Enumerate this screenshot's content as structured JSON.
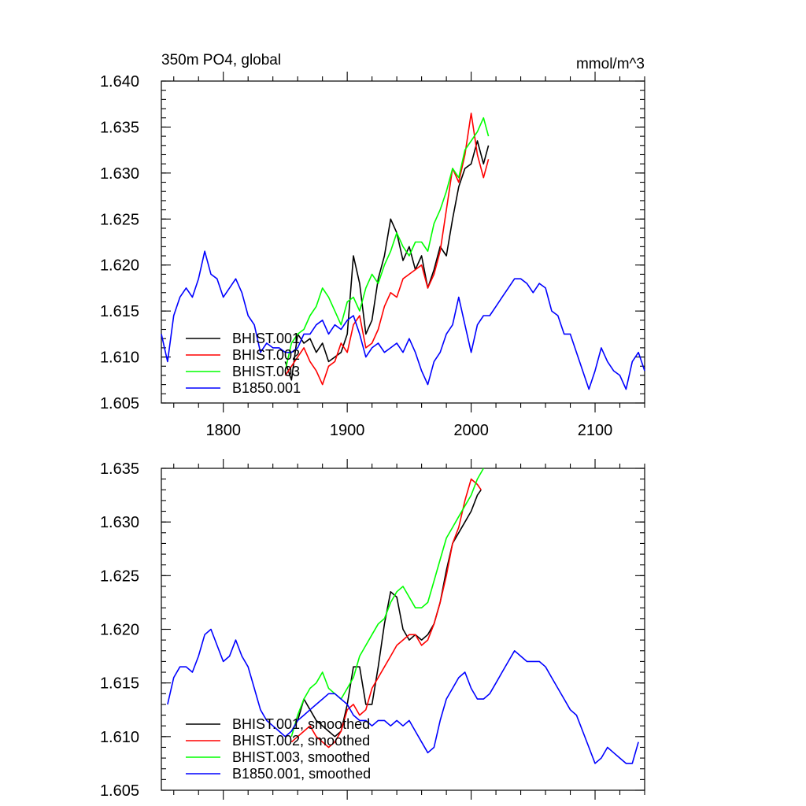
{
  "chart_data": [
    {
      "type": "line",
      "title": "350m PO4, global",
      "units": "mmol/m^3",
      "xlabel": "",
      "ylabel": "",
      "xlim": [
        1750,
        2140
      ],
      "ylim": [
        1.605,
        1.64
      ],
      "x_ticks": [
        1800,
        1900,
        2000,
        2100
      ],
      "x_tick_labels": [
        "1800",
        "1900",
        "2000",
        "2100"
      ],
      "y_ticks": [
        1.605,
        1.61,
        1.615,
        1.62,
        1.625,
        1.63,
        1.635,
        1.64
      ],
      "y_tick_labels": [
        "1.605",
        "1.610",
        "1.615",
        "1.620",
        "1.625",
        "1.630",
        "1.635",
        "1.640"
      ],
      "grid": false,
      "legend_position": "bottom-left",
      "series": [
        {
          "name": "BHIST.001",
          "color": "#000000",
          "x": [
            1850,
            1855,
            1860,
            1865,
            1870,
            1875,
            1880,
            1885,
            1890,
            1895,
            1900,
            1905,
            1910,
            1915,
            1920,
            1925,
            1930,
            1935,
            1940,
            1945,
            1950,
            1955,
            1960,
            1965,
            1970,
            1975,
            1980,
            1985,
            1990,
            1995,
            2000,
            2005,
            2010,
            2014
          ],
          "y": [
            1.6095,
            1.6075,
            1.6125,
            1.6115,
            1.612,
            1.6105,
            1.6115,
            1.6095,
            1.61,
            1.6105,
            1.6125,
            1.621,
            1.618,
            1.6125,
            1.614,
            1.6185,
            1.621,
            1.625,
            1.6235,
            1.6205,
            1.622,
            1.6195,
            1.621,
            1.6175,
            1.6195,
            1.622,
            1.621,
            1.625,
            1.6285,
            1.6305,
            1.631,
            1.6335,
            1.631,
            1.633
          ]
        },
        {
          "name": "BHIST.002",
          "color": "#ff0000",
          "x": [
            1850,
            1855,
            1860,
            1865,
            1870,
            1875,
            1880,
            1885,
            1890,
            1895,
            1900,
            1905,
            1910,
            1915,
            1920,
            1925,
            1930,
            1935,
            1940,
            1945,
            1950,
            1955,
            1960,
            1965,
            1970,
            1975,
            1980,
            1985,
            1990,
            1995,
            2000,
            2005,
            2010,
            2014
          ],
          "y": [
            1.608,
            1.609,
            1.61,
            1.611,
            1.6095,
            1.6085,
            1.607,
            1.609,
            1.6095,
            1.6115,
            1.6105,
            1.6135,
            1.6145,
            1.611,
            1.6115,
            1.613,
            1.6155,
            1.617,
            1.6165,
            1.6185,
            1.619,
            1.6195,
            1.62,
            1.6175,
            1.619,
            1.6215,
            1.626,
            1.6305,
            1.629,
            1.632,
            1.6365,
            1.632,
            1.6295,
            1.6315
          ]
        },
        {
          "name": "BHIST.003",
          "color": "#00ff00",
          "x": [
            1850,
            1855,
            1860,
            1865,
            1870,
            1875,
            1880,
            1885,
            1890,
            1895,
            1900,
            1905,
            1910,
            1915,
            1920,
            1925,
            1930,
            1935,
            1940,
            1945,
            1950,
            1955,
            1960,
            1965,
            1970,
            1975,
            1980,
            1985,
            1990,
            1995,
            2000,
            2005,
            2010,
            2014
          ],
          "y": [
            1.6085,
            1.6115,
            1.6125,
            1.613,
            1.6145,
            1.6155,
            1.6175,
            1.6165,
            1.615,
            1.6135,
            1.616,
            1.6165,
            1.615,
            1.6175,
            1.619,
            1.618,
            1.62,
            1.6215,
            1.6235,
            1.622,
            1.621,
            1.6225,
            1.6225,
            1.6215,
            1.6245,
            1.626,
            1.628,
            1.6305,
            1.6295,
            1.6325,
            1.6335,
            1.6345,
            1.636,
            1.634
          ]
        },
        {
          "name": "B1850.001",
          "color": "#0000ff",
          "x": [
            1750,
            1755,
            1760,
            1765,
            1770,
            1775,
            1780,
            1785,
            1790,
            1795,
            1800,
            1805,
            1810,
            1815,
            1820,
            1825,
            1830,
            1835,
            1840,
            1845,
            1850,
            1855,
            1860,
            1865,
            1870,
            1875,
            1880,
            1885,
            1890,
            1895,
            1900,
            1905,
            1910,
            1915,
            1920,
            1925,
            1930,
            1935,
            1940,
            1945,
            1950,
            1955,
            1960,
            1965,
            1970,
            1975,
            1980,
            1985,
            1990,
            1995,
            2000,
            2005,
            2010,
            2015,
            2020,
            2025,
            2030,
            2035,
            2040,
            2045,
            2050,
            2055,
            2060,
            2065,
            2070,
            2075,
            2080,
            2085,
            2090,
            2095,
            2100,
            2105,
            2110,
            2115,
            2120,
            2125,
            2130,
            2135,
            2140
          ],
          "y": [
            1.6125,
            1.6095,
            1.6145,
            1.6165,
            1.6175,
            1.6165,
            1.6185,
            1.6215,
            1.619,
            1.6185,
            1.6165,
            1.6175,
            1.6185,
            1.617,
            1.6145,
            1.6135,
            1.6105,
            1.6115,
            1.611,
            1.611,
            1.6105,
            1.6105,
            1.611,
            1.6125,
            1.6125,
            1.6135,
            1.614,
            1.6125,
            1.6135,
            1.613,
            1.614,
            1.6145,
            1.6125,
            1.61,
            1.611,
            1.6115,
            1.6105,
            1.611,
            1.6115,
            1.6105,
            1.612,
            1.6105,
            1.6085,
            1.607,
            1.6095,
            1.6105,
            1.6125,
            1.6135,
            1.6165,
            1.6135,
            1.6105,
            1.6135,
            1.6145,
            1.6145,
            1.6155,
            1.6165,
            1.6175,
            1.6185,
            1.6185,
            1.618,
            1.617,
            1.618,
            1.6175,
            1.615,
            1.6145,
            1.6125,
            1.6125,
            1.6105,
            1.6085,
            1.6065,
            1.6085,
            1.611,
            1.6095,
            1.6085,
            1.608,
            1.6065,
            1.6095,
            1.6105,
            1.6085
          ]
        }
      ]
    },
    {
      "type": "line",
      "title": "",
      "xlabel": "",
      "ylabel": "",
      "xlim": [
        1750,
        2140
      ],
      "ylim": [
        1.605,
        1.635
      ],
      "x_ticks": [
        1800,
        1900,
        2000,
        2100
      ],
      "x_tick_labels": [],
      "y_ticks": [
        1.605,
        1.61,
        1.615,
        1.62,
        1.625,
        1.63,
        1.635
      ],
      "y_tick_labels": [
        "1.605",
        "1.610",
        "1.615",
        "1.620",
        "1.625",
        "1.630",
        "1.635"
      ],
      "grid": false,
      "legend_position": "bottom-left",
      "series": [
        {
          "name": "BHIST.001, smoothed",
          "color": "#000000",
          "x": [
            1855,
            1860,
            1865,
            1870,
            1875,
            1880,
            1885,
            1890,
            1895,
            1900,
            1905,
            1910,
            1915,
            1920,
            1925,
            1930,
            1935,
            1940,
            1945,
            1950,
            1955,
            1960,
            1965,
            1970,
            1975,
            1980,
            1985,
            1990,
            1995,
            2000,
            2005,
            2008
          ],
          "y": [
            1.6105,
            1.6115,
            1.6135,
            1.6125,
            1.6115,
            1.611,
            1.6105,
            1.61,
            1.6105,
            1.613,
            1.6165,
            1.6165,
            1.613,
            1.613,
            1.6165,
            1.6205,
            1.6235,
            1.623,
            1.62,
            1.619,
            1.6195,
            1.619,
            1.6195,
            1.6205,
            1.6225,
            1.6255,
            1.628,
            1.629,
            1.63,
            1.631,
            1.6325,
            1.633
          ]
        },
        {
          "name": "BHIST.002, smoothed",
          "color": "#ff0000",
          "x": [
            1855,
            1860,
            1865,
            1870,
            1875,
            1880,
            1885,
            1890,
            1895,
            1900,
            1905,
            1910,
            1915,
            1920,
            1925,
            1930,
            1935,
            1940,
            1945,
            1950,
            1955,
            1960,
            1965,
            1970,
            1975,
            1980,
            1985,
            1990,
            1995,
            2000,
            2005,
            2008
          ],
          "y": [
            1.6095,
            1.61,
            1.6105,
            1.611,
            1.61,
            1.6095,
            1.609,
            1.6095,
            1.6105,
            1.6125,
            1.613,
            1.612,
            1.6125,
            1.6145,
            1.6155,
            1.6165,
            1.6175,
            1.6185,
            1.619,
            1.6195,
            1.6195,
            1.6185,
            1.619,
            1.6205,
            1.6225,
            1.625,
            1.628,
            1.6295,
            1.632,
            1.634,
            1.6335,
            1.633
          ]
        },
        {
          "name": "BHIST.003, smoothed",
          "color": "#00ff00",
          "x": [
            1855,
            1860,
            1865,
            1870,
            1875,
            1880,
            1885,
            1890,
            1895,
            1900,
            1905,
            1910,
            1915,
            1920,
            1925,
            1930,
            1935,
            1940,
            1945,
            1950,
            1955,
            1960,
            1965,
            1970,
            1975,
            1980,
            1985,
            1990,
            1995,
            2000,
            2005,
            2010
          ],
          "y": [
            1.61,
            1.612,
            1.6135,
            1.6145,
            1.615,
            1.616,
            1.6145,
            1.614,
            1.6135,
            1.6145,
            1.6155,
            1.6175,
            1.6185,
            1.6195,
            1.6205,
            1.621,
            1.6225,
            1.6235,
            1.624,
            1.623,
            1.622,
            1.622,
            1.6225,
            1.6245,
            1.6265,
            1.6285,
            1.6295,
            1.6305,
            1.6315,
            1.6325,
            1.634,
            1.635
          ]
        },
        {
          "name": "B1850.001, smoothed",
          "color": "#0000ff",
          "x": [
            1755,
            1760,
            1765,
            1770,
            1775,
            1780,
            1785,
            1790,
            1795,
            1800,
            1805,
            1810,
            1815,
            1820,
            1825,
            1830,
            1835,
            1840,
            1845,
            1850,
            1855,
            1860,
            1865,
            1870,
            1875,
            1880,
            1885,
            1890,
            1895,
            1900,
            1905,
            1910,
            1915,
            1920,
            1925,
            1930,
            1935,
            1940,
            1945,
            1950,
            1955,
            1960,
            1965,
            1970,
            1975,
            1980,
            1985,
            1990,
            1995,
            2000,
            2005,
            2010,
            2015,
            2020,
            2025,
            2030,
            2035,
            2040,
            2045,
            2050,
            2055,
            2060,
            2065,
            2070,
            2075,
            2080,
            2085,
            2090,
            2095,
            2100,
            2105,
            2110,
            2115,
            2120,
            2125,
            2130,
            2135
          ],
          "y": [
            1.613,
            1.6155,
            1.6165,
            1.6165,
            1.616,
            1.6175,
            1.6195,
            1.62,
            1.6185,
            1.617,
            1.6175,
            1.619,
            1.6175,
            1.6165,
            1.6145,
            1.6125,
            1.6115,
            1.611,
            1.6105,
            1.61,
            1.6105,
            1.6115,
            1.612,
            1.6125,
            1.613,
            1.6135,
            1.614,
            1.614,
            1.6135,
            1.613,
            1.612,
            1.6115,
            1.6115,
            1.611,
            1.6115,
            1.6115,
            1.611,
            1.6115,
            1.611,
            1.6115,
            1.6105,
            1.6095,
            1.6085,
            1.609,
            1.6115,
            1.6135,
            1.6145,
            1.6155,
            1.616,
            1.6145,
            1.6135,
            1.6135,
            1.614,
            1.615,
            1.616,
            1.617,
            1.618,
            1.6175,
            1.617,
            1.617,
            1.617,
            1.6165,
            1.6155,
            1.6145,
            1.6135,
            1.6125,
            1.612,
            1.6105,
            1.609,
            1.6075,
            1.608,
            1.609,
            1.6085,
            1.608,
            1.6075,
            1.6075,
            1.6095
          ]
        }
      ]
    }
  ]
}
